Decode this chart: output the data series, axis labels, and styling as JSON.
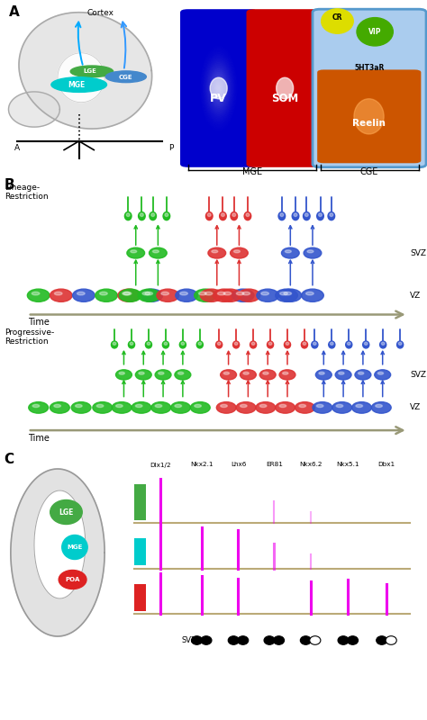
{
  "bg_color": "#ffffff",
  "green": "#22bb22",
  "red": "#dd3333",
  "blue": "#3355cc",
  "magenta": "#ee00ee",
  "cyan_mge": "#00ccdd",
  "time_arrow_color": "#999977",
  "pv_color": "#0000cc",
  "som_color": "#cc0000",
  "cr_color": "#dddd00",
  "vip_color": "#44aa00",
  "reelin_color": "#cc5500",
  "ht3ar_border": "#5599cc",
  "lge_color": "#44aa44",
  "mge_color": "#00cccc",
  "poa_color": "#dd2222",
  "brain_outline": "#aaaaaa",
  "brain_fill": "#dddddd",
  "gene_labels": [
    "Dlx1/2",
    "Nkx2.1",
    "Lhx6",
    "ER81",
    "Nkx6.2",
    "Nkx5.1",
    "Dbx1"
  ]
}
